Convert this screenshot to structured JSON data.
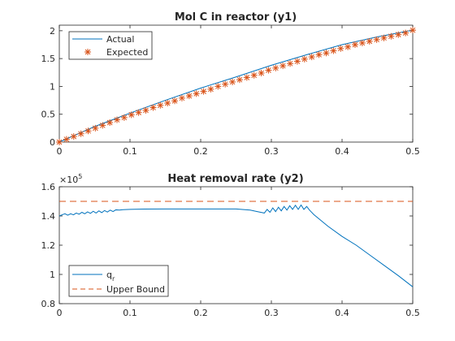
{
  "chart_data": [
    {
      "type": "line",
      "title": "Mol C in reactor (y1)",
      "xlabel": "",
      "ylabel": "",
      "xlim": [
        0,
        0.5
      ],
      "ylim": [
        0,
        2.1
      ],
      "xticks": [
        "0",
        "0.1",
        "0.2",
        "0.3",
        "0.4",
        "0.5"
      ],
      "yticks": [
        "0",
        "0.5",
        "1",
        "1.5",
        "2"
      ],
      "legend_location": "top-left",
      "series": [
        {
          "name": "Actual",
          "style": "line",
          "color": "#0072BD",
          "x": [
            0,
            0.05,
            0.1,
            0.15,
            0.2,
            0.25,
            0.3,
            0.35,
            0.4,
            0.45,
            0.5
          ],
          "y": [
            0,
            0.28,
            0.52,
            0.75,
            0.97,
            1.17,
            1.38,
            1.57,
            1.75,
            1.89,
            2.01
          ]
        },
        {
          "name": "Expected",
          "style": "markers",
          "marker": "*",
          "color": "#D95319",
          "x": [
            0,
            0.0102,
            0.0204,
            0.0306,
            0.0408,
            0.051,
            0.0612,
            0.0714,
            0.0816,
            0.0918,
            0.102,
            0.1122,
            0.1224,
            0.1327,
            0.1429,
            0.1531,
            0.1633,
            0.1735,
            0.1837,
            0.1939,
            0.2041,
            0.2143,
            0.2245,
            0.2347,
            0.2449,
            0.2551,
            0.2653,
            0.2755,
            0.2857,
            0.2959,
            0.3061,
            0.3163,
            0.3265,
            0.3367,
            0.3469,
            0.3571,
            0.3673,
            0.3776,
            0.3878,
            0.398,
            0.4082,
            0.4184,
            0.4286,
            0.4388,
            0.449,
            0.4592,
            0.4694,
            0.4796,
            0.4898,
            0.5
          ],
          "y": [
            0,
            0.05,
            0.1,
            0.15,
            0.2,
            0.25,
            0.3,
            0.35,
            0.4,
            0.44,
            0.49,
            0.53,
            0.57,
            0.62,
            0.66,
            0.7,
            0.74,
            0.79,
            0.83,
            0.87,
            0.91,
            0.95,
            1.0,
            1.04,
            1.08,
            1.12,
            1.16,
            1.2,
            1.24,
            1.29,
            1.33,
            1.37,
            1.41,
            1.45,
            1.49,
            1.53,
            1.57,
            1.6,
            1.64,
            1.68,
            1.71,
            1.75,
            1.78,
            1.81,
            1.84,
            1.87,
            1.9,
            1.93,
            1.96,
            2.01
          ]
        }
      ]
    },
    {
      "type": "line",
      "title": "Heat removal rate (y2)",
      "xlabel": "",
      "ylabel": "",
      "xlim": [
        0,
        0.5
      ],
      "ylim": [
        0.8,
        1.6
      ],
      "y_exponent_label": "×10",
      "y_exponent_power": "5",
      "xticks": [
        "0",
        "0.1",
        "0.2",
        "0.3",
        "0.4",
        "0.5"
      ],
      "yticks": [
        "0.8",
        "1",
        "1.2",
        "1.4",
        "1.6"
      ],
      "legend_location": "bottom-left",
      "series": [
        {
          "name": "q",
          "name_subscript": "r",
          "style": "line",
          "color": "#0072BD",
          "x": [
            0,
            0.005,
            0.008,
            0.012,
            0.016,
            0.02,
            0.024,
            0.028,
            0.032,
            0.036,
            0.04,
            0.044,
            0.048,
            0.052,
            0.056,
            0.06,
            0.064,
            0.068,
            0.072,
            0.076,
            0.08,
            0.085,
            0.09,
            0.1,
            0.12,
            0.15,
            0.2,
            0.25,
            0.27,
            0.28,
            0.285,
            0.29,
            0.294,
            0.298,
            0.302,
            0.306,
            0.31,
            0.314,
            0.318,
            0.322,
            0.326,
            0.33,
            0.334,
            0.338,
            0.342,
            0.346,
            0.35,
            0.354,
            0.36,
            0.38,
            0.4,
            0.42,
            0.44,
            0.46,
            0.48,
            0.5
          ],
          "y": [
            1.4,
            1.41,
            1.415,
            1.405,
            1.415,
            1.408,
            1.42,
            1.412,
            1.425,
            1.415,
            1.428,
            1.418,
            1.432,
            1.42,
            1.435,
            1.423,
            1.437,
            1.427,
            1.44,
            1.43,
            1.442,
            1.44,
            1.443,
            1.445,
            1.447,
            1.448,
            1.448,
            1.448,
            1.44,
            1.43,
            1.425,
            1.42,
            1.445,
            1.425,
            1.455,
            1.43,
            1.46,
            1.435,
            1.465,
            1.44,
            1.47,
            1.445,
            1.473,
            1.445,
            1.475,
            1.445,
            1.465,
            1.44,
            1.41,
            1.33,
            1.26,
            1.2,
            1.13,
            1.06,
            0.99,
            0.915
          ]
        },
        {
          "name": "Upper Bound",
          "style": "dashed",
          "color": "#D95319",
          "x": [
            0,
            0.5
          ],
          "y": [
            1.5,
            1.5
          ]
        }
      ]
    }
  ]
}
